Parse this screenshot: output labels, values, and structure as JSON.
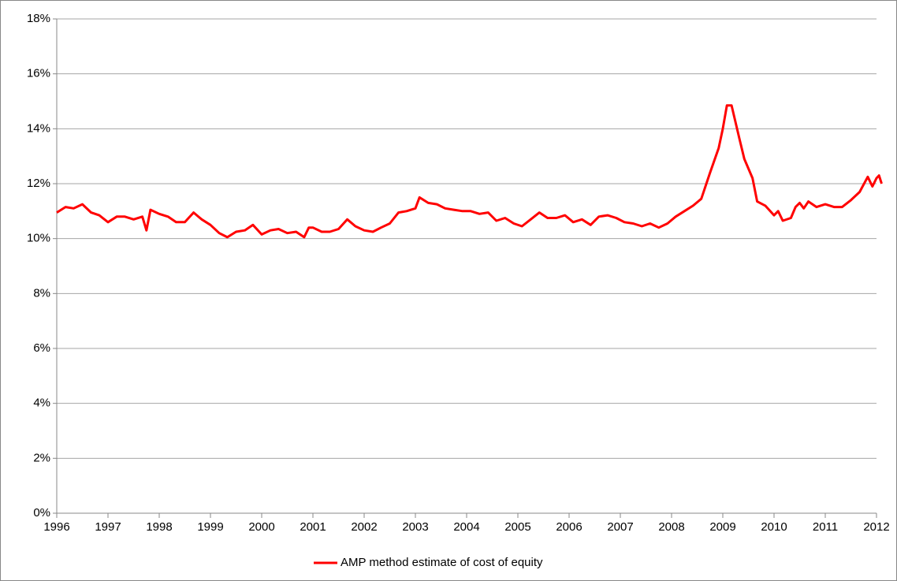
{
  "chart_data": {
    "type": "line",
    "x": [
      1996.0,
      1996.17,
      1996.33,
      1996.5,
      1996.67,
      1996.83,
      1997.0,
      1997.17,
      1997.33,
      1997.5,
      1997.67,
      1997.75,
      1997.83,
      1998.0,
      1998.17,
      1998.33,
      1998.5,
      1998.67,
      1998.83,
      1999.0,
      1999.17,
      1999.33,
      1999.5,
      1999.67,
      1999.83,
      2000.0,
      2000.17,
      2000.33,
      2000.5,
      2000.67,
      2000.83,
      2000.92,
      2001.0,
      2001.17,
      2001.33,
      2001.5,
      2001.67,
      2001.83,
      2002.0,
      2002.17,
      2002.33,
      2002.5,
      2002.67,
      2002.83,
      2003.0,
      2003.08,
      2003.25,
      2003.42,
      2003.58,
      2003.75,
      2003.92,
      2004.08,
      2004.25,
      2004.42,
      2004.58,
      2004.75,
      2004.92,
      2005.08,
      2005.25,
      2005.42,
      2005.58,
      2005.75,
      2005.92,
      2006.08,
      2006.25,
      2006.42,
      2006.58,
      2006.75,
      2006.92,
      2007.08,
      2007.25,
      2007.42,
      2007.58,
      2007.75,
      2007.92,
      2008.08,
      2008.25,
      2008.42,
      2008.58,
      2008.75,
      2008.92,
      2009.0,
      2009.08,
      2009.17,
      2009.33,
      2009.42,
      2009.58,
      2009.67,
      2009.83,
      2010.0,
      2010.08,
      2010.17,
      2010.33,
      2010.42,
      2010.5,
      2010.58,
      2010.67,
      2010.83,
      2011.0,
      2011.17,
      2011.33,
      2011.5,
      2011.67,
      2011.83,
      2011.92,
      2012.0,
      2012.05,
      2012.1
    ],
    "series": [
      {
        "name": "AMP method estimate of cost of equity",
        "color": "#ff0000",
        "values": [
          10.95,
          11.15,
          11.1,
          11.25,
          10.95,
          10.85,
          10.6,
          10.8,
          10.8,
          10.7,
          10.8,
          10.3,
          11.05,
          10.9,
          10.8,
          10.6,
          10.6,
          10.95,
          10.7,
          10.5,
          10.2,
          10.05,
          10.25,
          10.3,
          10.5,
          10.15,
          10.3,
          10.35,
          10.2,
          10.25,
          10.05,
          10.4,
          10.4,
          10.25,
          10.25,
          10.35,
          10.7,
          10.45,
          10.3,
          10.25,
          10.4,
          10.55,
          10.95,
          11.0,
          11.1,
          11.5,
          11.3,
          11.25,
          11.1,
          11.05,
          11.0,
          11.0,
          10.9,
          10.95,
          10.65,
          10.75,
          10.55,
          10.45,
          10.7,
          10.95,
          10.75,
          10.75,
          10.85,
          10.6,
          10.7,
          10.5,
          10.8,
          10.85,
          10.75,
          10.6,
          10.55,
          10.45,
          10.55,
          10.4,
          10.55,
          10.8,
          11.0,
          11.2,
          11.45,
          12.4,
          13.3,
          14.0,
          14.85,
          14.85,
          13.6,
          12.9,
          12.2,
          11.35,
          11.2,
          10.85,
          11.0,
          10.65,
          10.75,
          11.15,
          11.3,
          11.1,
          11.35,
          11.15,
          11.25,
          11.15,
          11.15,
          11.4,
          11.7,
          12.25,
          11.9,
          12.2,
          12.3,
          12.0
        ]
      }
    ],
    "xlim": [
      1996,
      2012
    ],
    "xticks": [
      1996,
      1997,
      1998,
      1999,
      2000,
      2001,
      2002,
      2003,
      2004,
      2005,
      2006,
      2007,
      2008,
      2009,
      2010,
      2011,
      2012
    ],
    "ylim": [
      0,
      18
    ],
    "yticks": [
      {
        "value": 0,
        "label": "0%"
      },
      {
        "value": 2,
        "label": "2%"
      },
      {
        "value": 4,
        "label": "4%"
      },
      {
        "value": 6,
        "label": "6%"
      },
      {
        "value": 8,
        "label": "8%"
      },
      {
        "value": 10,
        "label": "10%"
      },
      {
        "value": 12,
        "label": "12%"
      },
      {
        "value": 14,
        "label": "14%"
      },
      {
        "value": 16,
        "label": "16%"
      },
      {
        "value": 18,
        "label": "18%"
      }
    ],
    "grid": true,
    "legend": "bottom"
  }
}
